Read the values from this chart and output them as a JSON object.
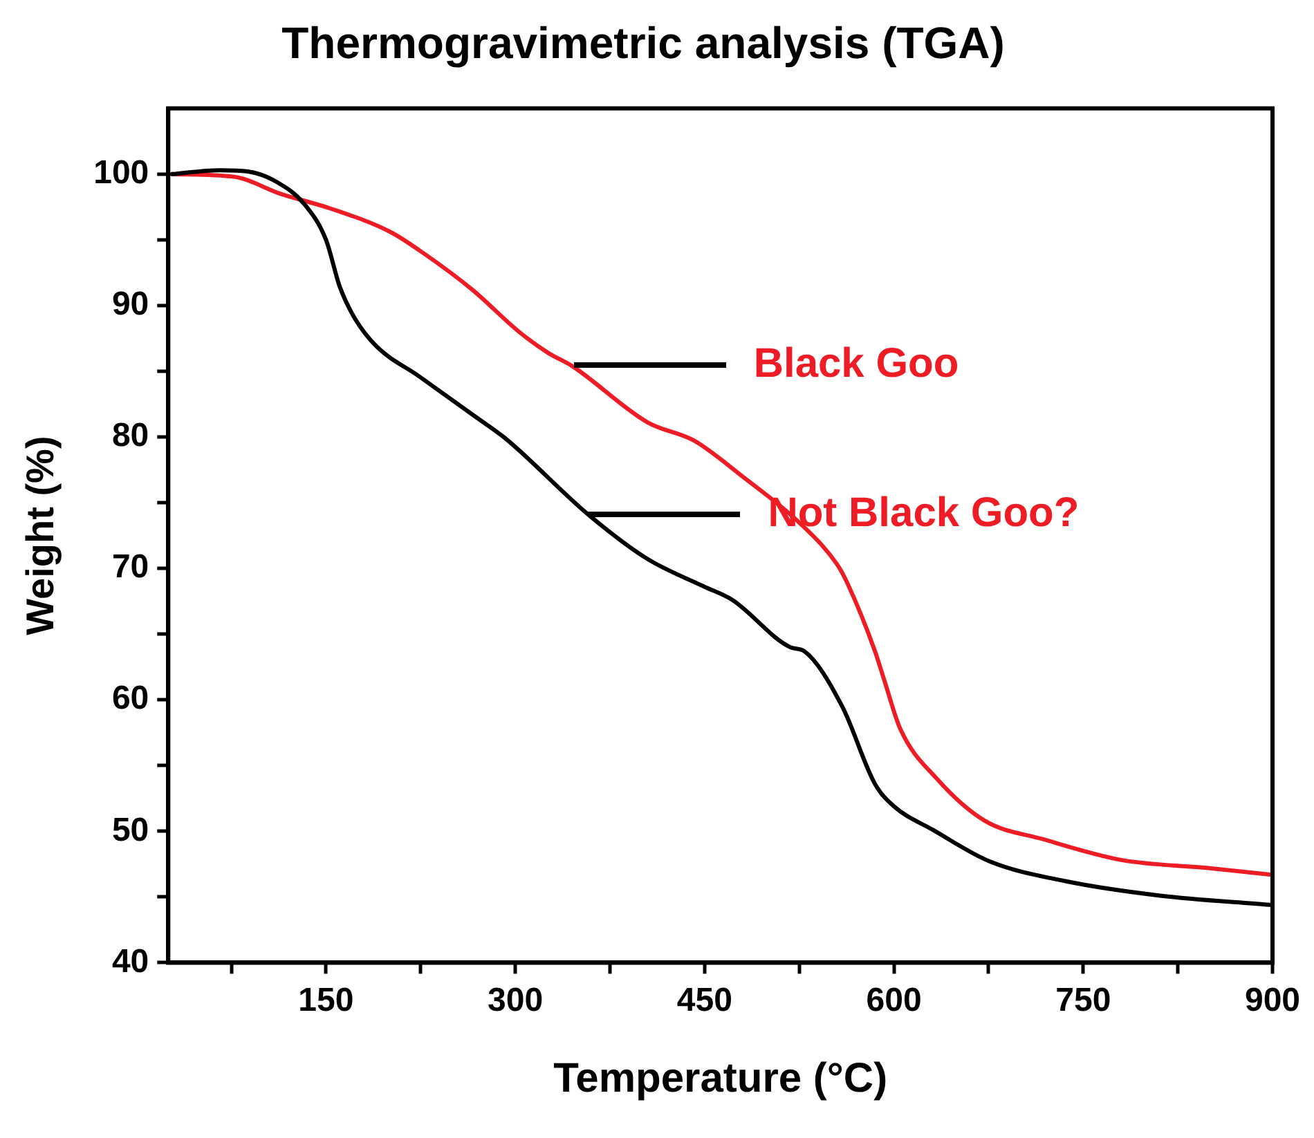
{
  "chart_data": {
    "type": "line",
    "title": "Thermogravimetric analysis (TGA)",
    "xlabel": "Temperature (°C)",
    "ylabel": "Weight (%)",
    "xlim": [
      25,
      900
    ],
    "xticks": [
      {
        "value": 75,
        "label": null
      },
      150,
      {
        "value": 225,
        "label": null
      },
      300,
      {
        "value": 375,
        "label": null
      },
      450,
      {
        "value": 525,
        "label": null
      },
      600,
      {
        "value": 675,
        "label": null
      },
      750,
      {
        "value": 825,
        "label": null
      },
      900
    ],
    "ylim": [
      40,
      105
    ],
    "yticks": [
      40,
      {
        "value": 45,
        "label": null
      },
      50,
      {
        "value": 55,
        "label": null
      },
      60,
      {
        "value": 65,
        "label": null
      },
      70,
      {
        "value": 75,
        "label": null
      },
      80,
      {
        "value": 85,
        "label": null
      },
      90,
      {
        "value": 95,
        "label": null
      },
      100
    ],
    "grid": false,
    "legend": false,
    "marker": "none",
    "line_style": "solid",
    "series": [
      {
        "color": "#000000",
        "x": [
          28,
          66,
          88,
          111,
          133,
          150,
          161,
          173,
          190,
          224,
          269,
          292,
          359,
          405,
          450,
          472,
          518,
          529,
          559,
          585,
          600,
          631,
          676,
          736,
          811,
          898
        ],
        "values": [
          100,
          100.3,
          100.2,
          99.4,
          97.7,
          95,
          91.4,
          89,
          86.9,
          84.6,
          81.5,
          79.9,
          74,
          70.7,
          68.6,
          67.6,
          64,
          63.7,
          59.5,
          53.6,
          51.9,
          50.1,
          47.7,
          46.2,
          45.1,
          44.4
        ]
      },
      {
        "color": "#ee1c25",
        "x": [
          28,
          77,
          114,
          153,
          201,
          227,
          266,
          303,
          326,
          345,
          405,
          442,
          480,
          526,
          555,
          563,
          585,
          593,
          605,
          634,
          672,
          718,
          781,
          849,
          898
        ],
        "values": [
          100,
          99.8,
          98.5,
          97.4,
          95.6,
          94,
          91.2,
          88,
          86.4,
          85.4,
          81.1,
          79.7,
          77,
          73.4,
          70.3,
          68.9,
          63.7,
          61.3,
          57.8,
          54,
          50.8,
          49.4,
          47.8,
          47.2,
          46.7
        ]
      }
    ],
    "annotations": [
      "Black Goo",
      "Not Black Goo?"
    ]
  }
}
